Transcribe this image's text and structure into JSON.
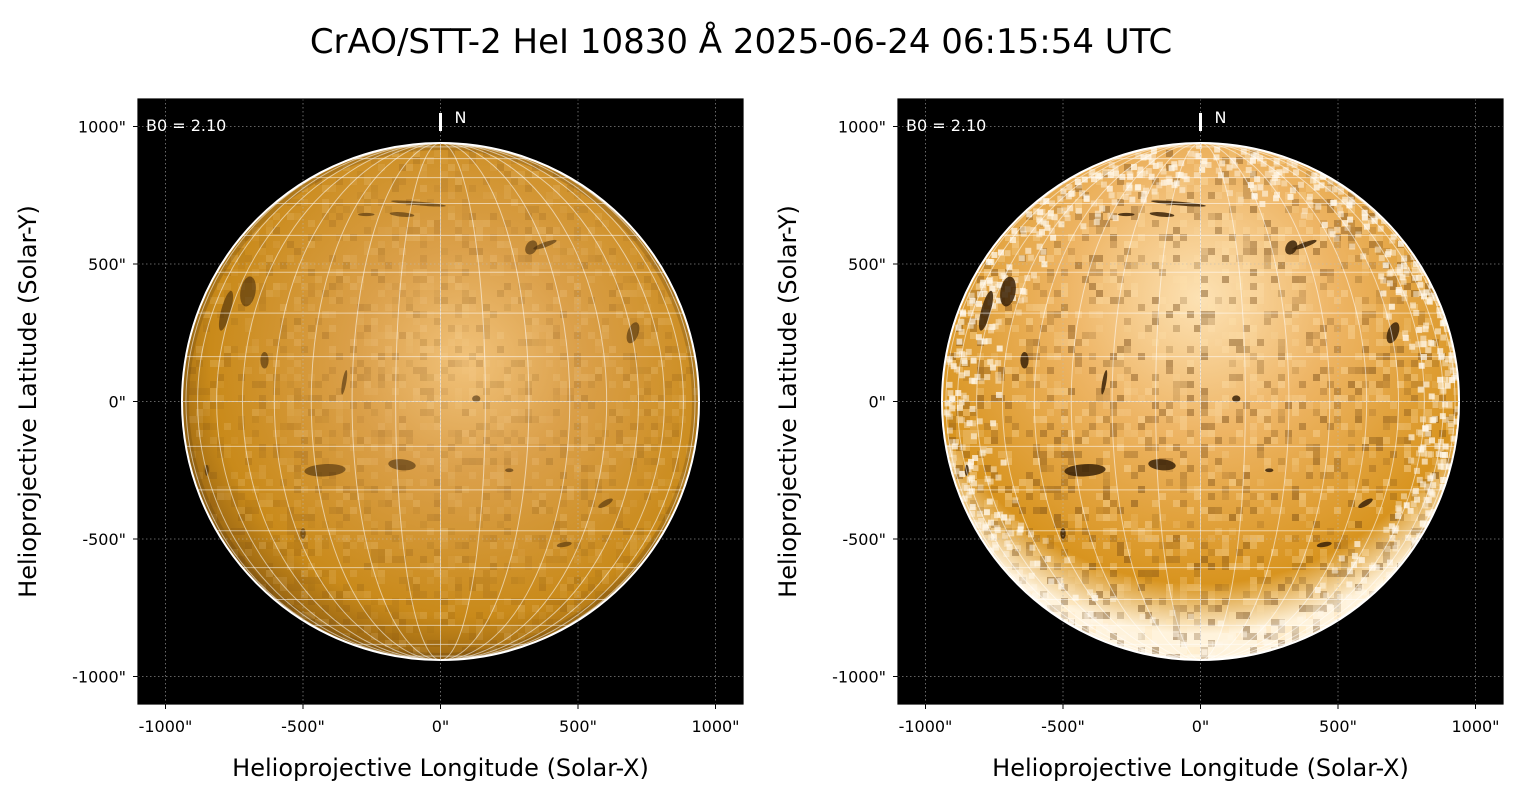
{
  "title": "CrAO/STT-2 HeI 10830 Å 2025-06-24 06:15:54 UTC",
  "colors": {
    "background": "#000000",
    "disk_base": "#c98a1a",
    "disk_bright": "#f1c27a",
    "disk_dark": "#3a2208",
    "limb": "#ffffff",
    "grid": "#ffffff"
  },
  "chart_data": [
    {
      "type": "heatmap",
      "panel": "left",
      "title": "",
      "xlabel": "Helioprojective Longitude (Solar-X)",
      "ylabel": "Helioprojective Latitude (Solar-Y)",
      "xlim": [
        -1100,
        1100
      ],
      "ylim": [
        -1100,
        1100
      ],
      "xticks": [
        -1000,
        -500,
        0,
        500,
        1000
      ],
      "yticks": [
        1000,
        500,
        0,
        -500,
        -1000
      ],
      "xtick_labels": [
        "-1000\"",
        "-500\"",
        "0\"",
        "500\"",
        "1000\""
      ],
      "ytick_labels": [
        "1000\"",
        "500\"",
        "0\"",
        "-500\"",
        "-1000\""
      ],
      "grid": true,
      "solar_radius_arcsec": 940,
      "annotation": "B0 = 2.10",
      "north_label": "N",
      "style": "smooth"
    },
    {
      "type": "heatmap",
      "panel": "right",
      "title": "",
      "xlabel": "Helioprojective Longitude (Solar-X)",
      "ylabel": "Helioprojective Latitude (Solar-Y)",
      "xlim": [
        -1100,
        1100
      ],
      "ylim": [
        -1100,
        1100
      ],
      "xticks": [
        -1000,
        -500,
        0,
        500,
        1000
      ],
      "yticks": [
        1000,
        500,
        0,
        -500,
        -1000
      ],
      "xtick_labels": [
        "-1000\"",
        "-500\"",
        "0\"",
        "500\"",
        "1000\""
      ],
      "ytick_labels": [
        "1000\"",
        "500\"",
        "0\"",
        "-500\"",
        "-1000\""
      ],
      "grid": true,
      "solar_radius_arcsec": 940,
      "annotation": "B0 = 2.10",
      "north_label": "N",
      "style": "enhanced"
    }
  ]
}
